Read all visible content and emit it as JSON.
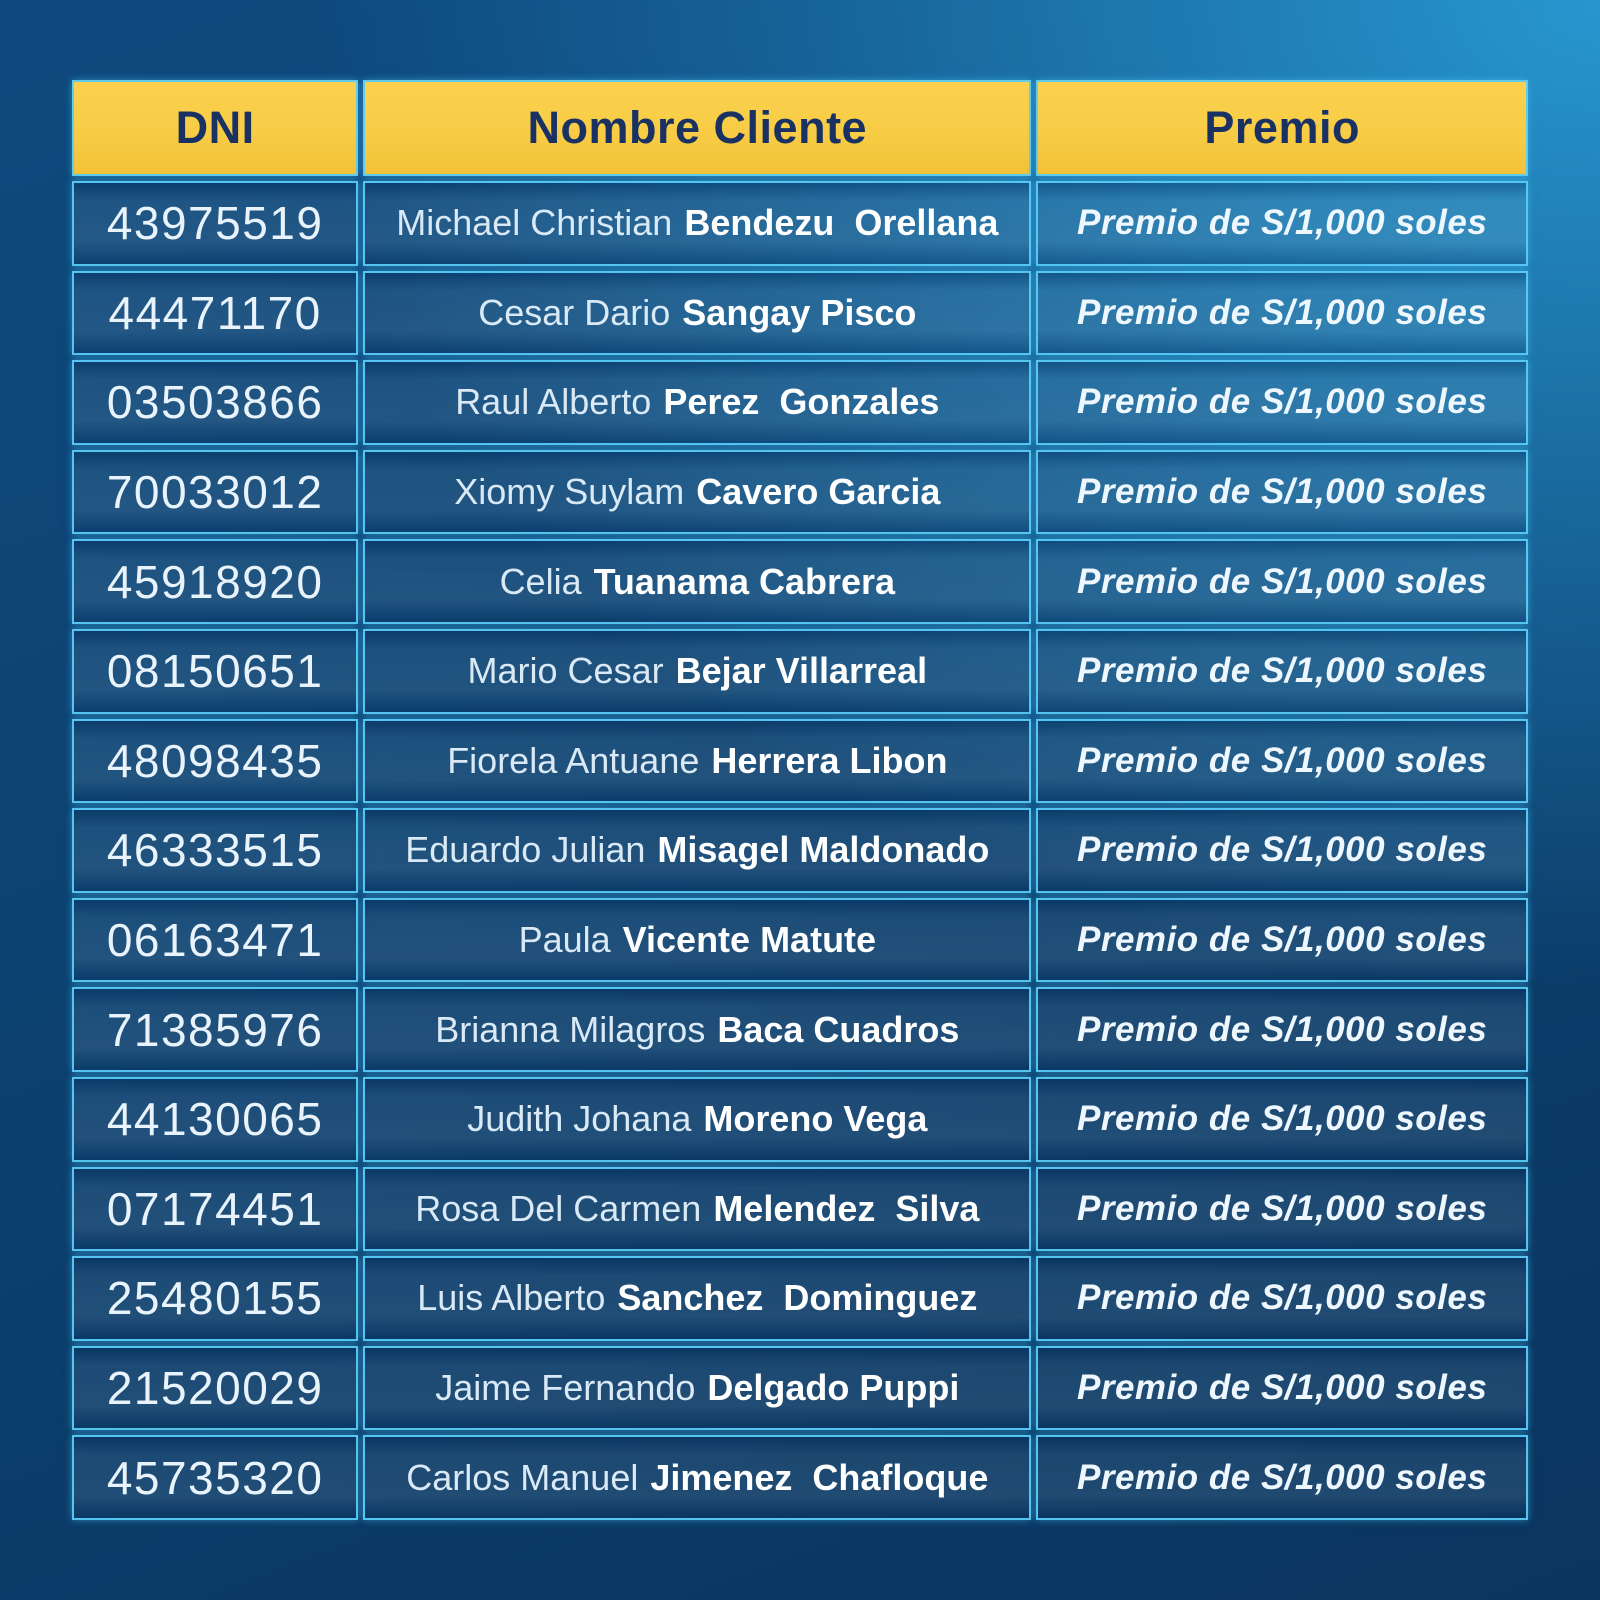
{
  "colors": {
    "background_dark": "#0A355F",
    "background_mid": "#0C4271",
    "background_light": "#2CA5DE",
    "header_yellow": "#F8CC45",
    "header_text_navy": "#1A3263",
    "cell_border_cyan": "#5ACBF7",
    "name_bold_white": "#FFFFFF",
    "body_text_light": "#E9F3FB"
  },
  "table": {
    "headers": {
      "dni": "DNI",
      "nombre": "Nombre Cliente",
      "premio": "Premio"
    },
    "rows": [
      {
        "dni": "43975519",
        "first": "Michael Christian",
        "last": "Bendezu  Orellana",
        "premio": "Premio de S/1,000 soles"
      },
      {
        "dni": "44471170",
        "first": "Cesar Dario",
        "last": "Sangay Pisco",
        "premio": "Premio de S/1,000 soles"
      },
      {
        "dni": "03503866",
        "first": "Raul Alberto",
        "last": "Perez  Gonzales",
        "premio": "Premio de S/1,000 soles"
      },
      {
        "dni": "70033012",
        "first": "Xiomy Suylam",
        "last": "Cavero Garcia",
        "premio": "Premio de S/1,000 soles"
      },
      {
        "dni": "45918920",
        "first": "Celia",
        "last": "Tuanama Cabrera",
        "premio": "Premio de S/1,000 soles"
      },
      {
        "dni": "08150651",
        "first": "Mario Cesar",
        "last": "Bejar Villarreal",
        "premio": "Premio de S/1,000 soles"
      },
      {
        "dni": "48098435",
        "first": "Fiorela Antuane",
        "last": "Herrera Libon",
        "premio": "Premio de S/1,000 soles"
      },
      {
        "dni": "46333515",
        "first": "Eduardo Julian",
        "last": "Misagel Maldonado",
        "premio": "Premio de S/1,000 soles"
      },
      {
        "dni": "06163471",
        "first": "Paula",
        "last": "Vicente Matute",
        "premio": "Premio de S/1,000 soles"
      },
      {
        "dni": "71385976",
        "first": "Brianna Milagros",
        "last": "Baca Cuadros",
        "premio": "Premio de S/1,000 soles"
      },
      {
        "dni": "44130065",
        "first": "Judith Johana",
        "last": "Moreno Vega",
        "premio": "Premio de S/1,000 soles"
      },
      {
        "dni": "07174451",
        "first": "Rosa Del Carmen",
        "last": "Melendez  Silva",
        "premio": "Premio de S/1,000 soles"
      },
      {
        "dni": "25480155",
        "first": "Luis Alberto",
        "last": "Sanchez  Dominguez",
        "premio": "Premio de S/1,000 soles"
      },
      {
        "dni": "21520029",
        "first": "Jaime Fernando",
        "last": "Delgado Puppi",
        "premio": "Premio de S/1,000 soles"
      },
      {
        "dni": "45735320",
        "first": "Carlos Manuel",
        "last": "Jimenez  Chafloque",
        "premio": "Premio de S/1,000 soles"
      }
    ]
  }
}
